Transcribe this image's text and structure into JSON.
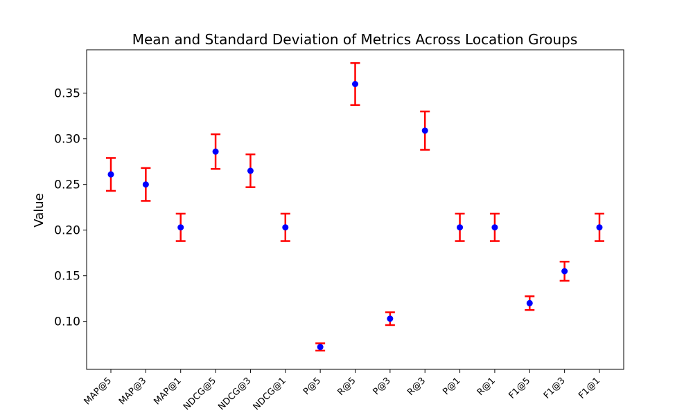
{
  "chart_data": {
    "type": "scatter",
    "title": "Mean and Standard Deviation of Metrics Across Location Groups",
    "xlabel": "",
    "ylabel": "Value",
    "categories": [
      "MAP@5",
      "MAP@3",
      "MAP@1",
      "NDCG@5",
      "NDCG@3",
      "NDCG@1",
      "P@5",
      "R@5",
      "P@3",
      "R@3",
      "P@1",
      "R@1",
      "F1@5",
      "F1@3",
      "F1@1"
    ],
    "series": [
      {
        "mean": [
          0.261,
          0.25,
          0.203,
          0.286,
          0.265,
          0.203,
          0.072,
          0.36,
          0.103,
          0.309,
          0.203,
          0.203,
          0.12,
          0.155,
          0.203
        ],
        "std": [
          0.018,
          0.018,
          0.015,
          0.019,
          0.018,
          0.015,
          0.004,
          0.023,
          0.007,
          0.021,
          0.015,
          0.015,
          0.0075,
          0.0105,
          0.015
        ]
      }
    ],
    "ylim": [
      0.0475,
      0.3975
    ],
    "yticks": [
      "0.10",
      "0.15",
      "0.20",
      "0.25",
      "0.30",
      "0.35"
    ],
    "grid": false,
    "marker_color": "#0000ff",
    "errorbar_color": "#ff0000"
  }
}
